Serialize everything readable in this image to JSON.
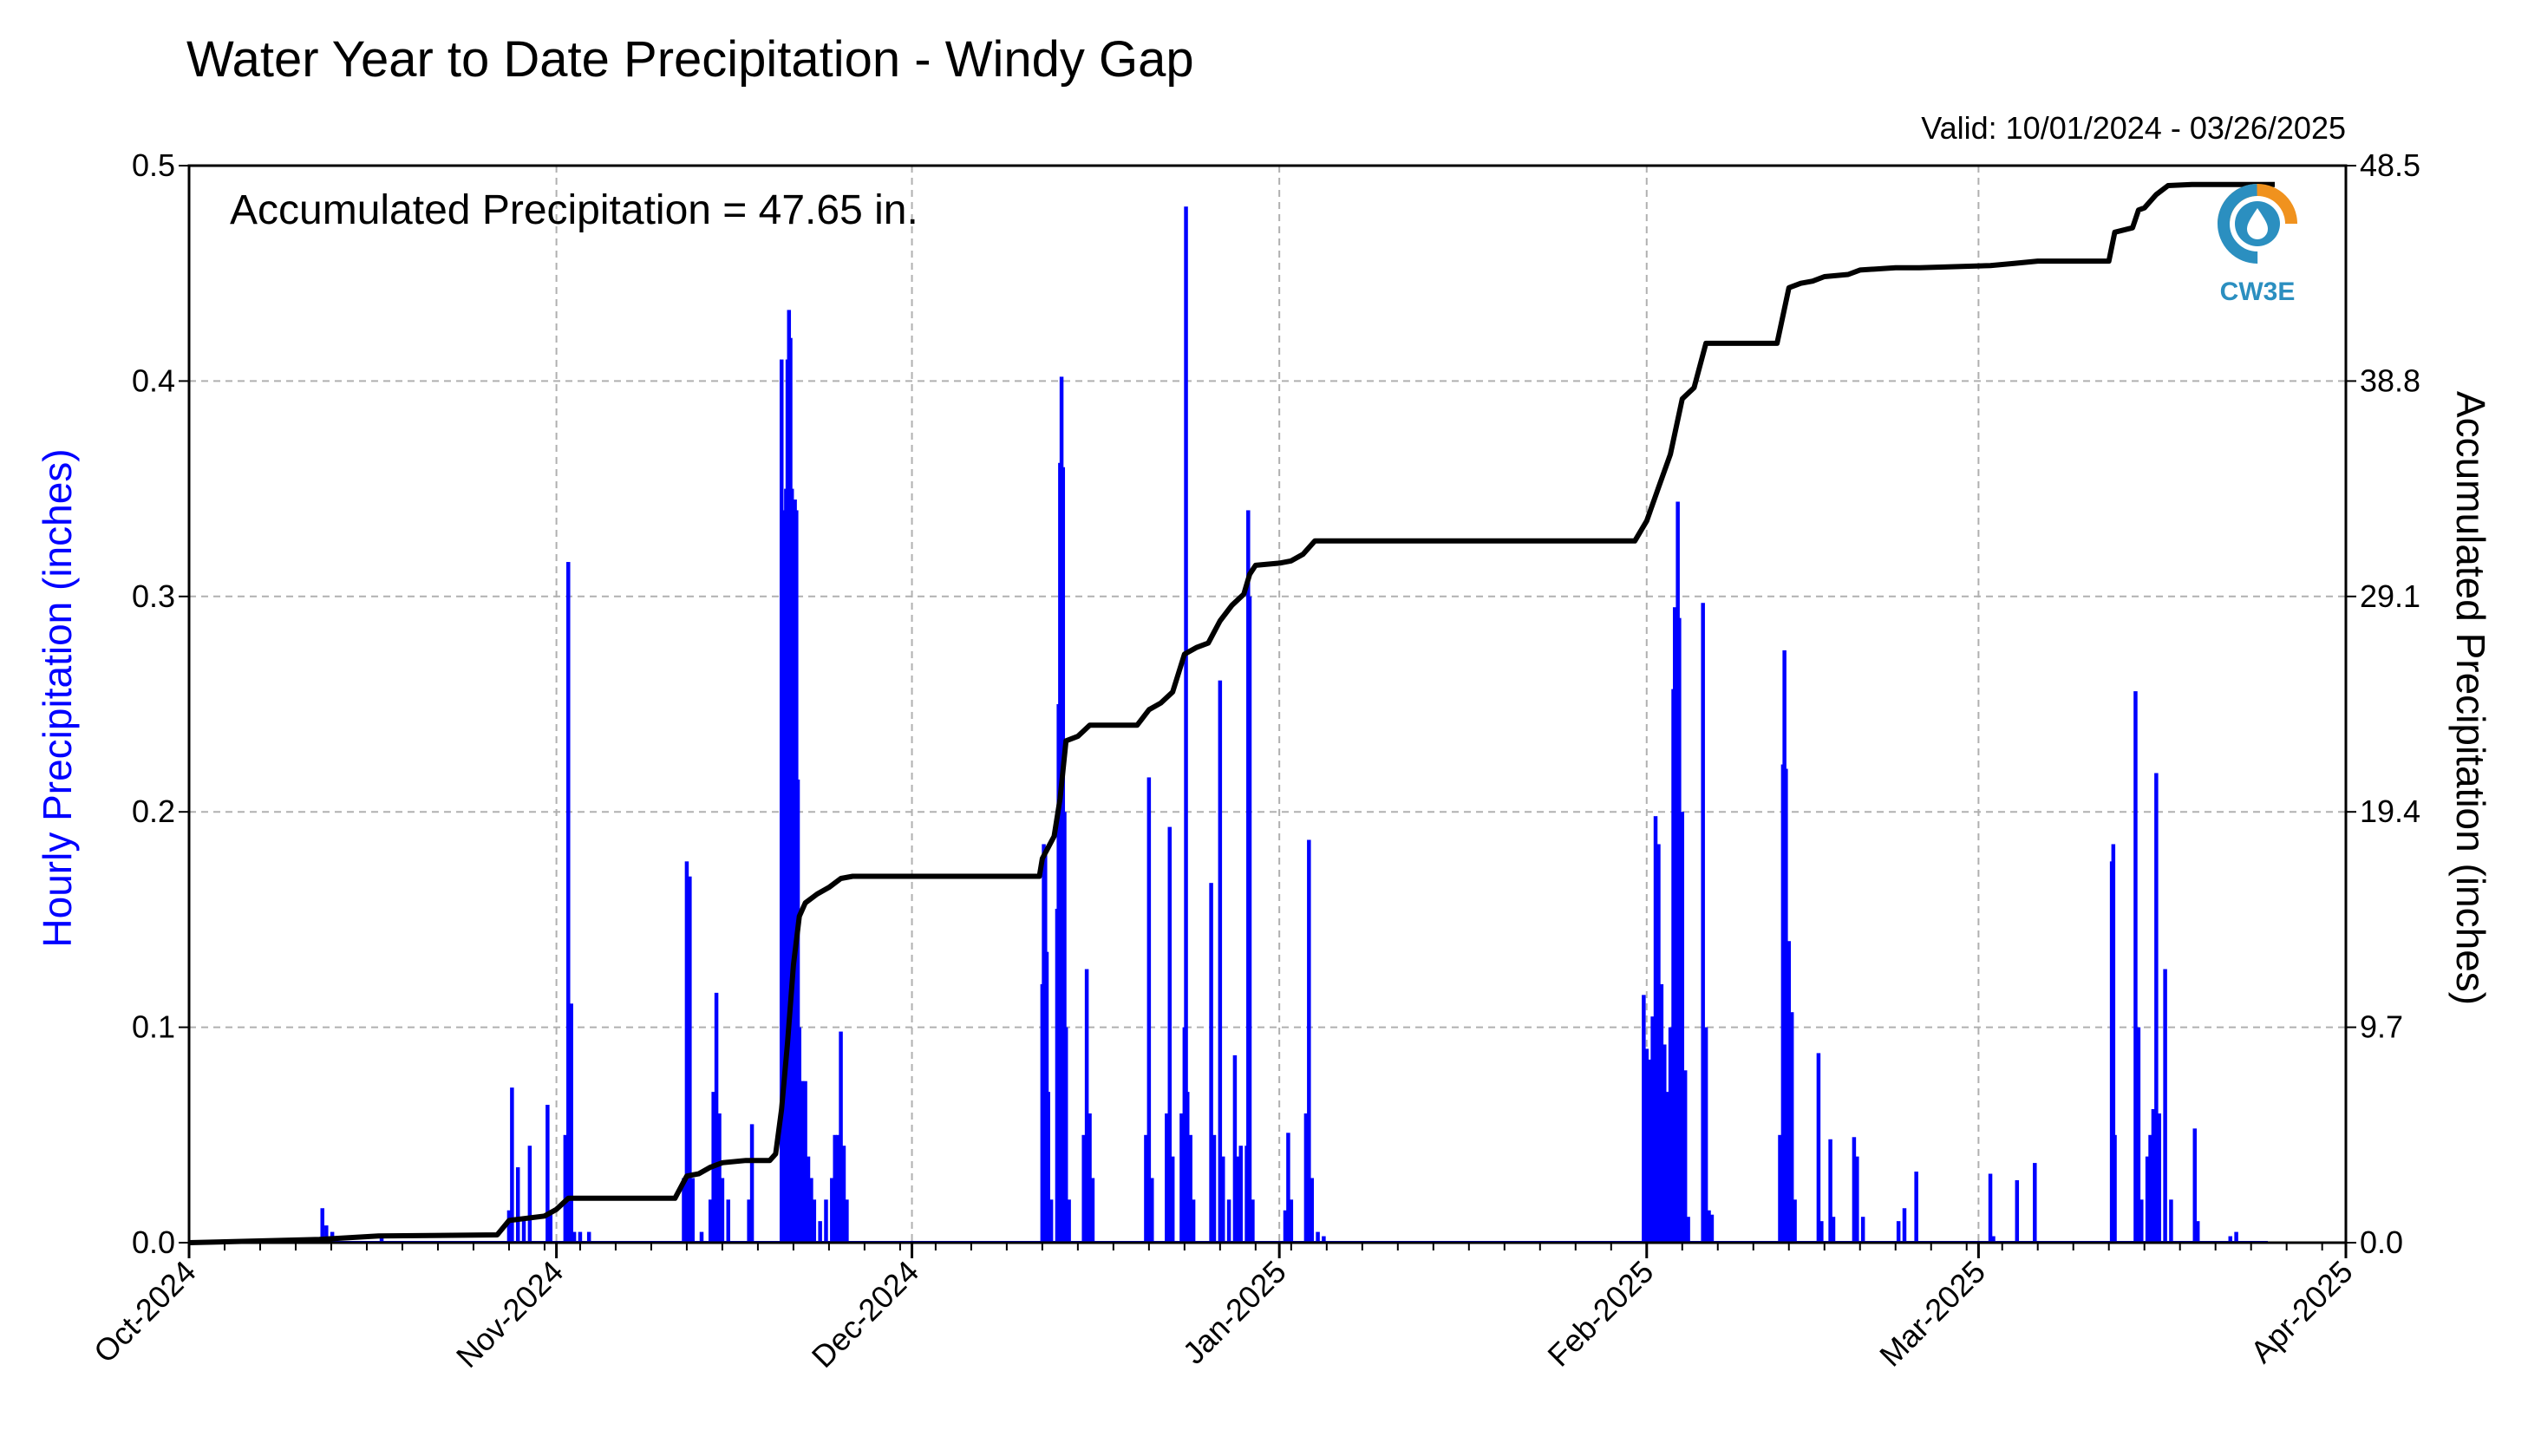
{
  "chart_data": {
    "type": "bar",
    "title": "Water Year to Date Precipitation - Windy Gap",
    "subtitle": "Valid: 10/01/2024 - 03/26/2025",
    "annotation": "Accumulated Precipitation = 47.65 in.",
    "ylabel": "Hourly Precipitation (inches)",
    "ylabel_right": "Accumulated Precipitation (inches)",
    "xlim": [
      "2024-10-01",
      "2025-04-01"
    ],
    "ylim": [
      0,
      0.5
    ],
    "ylim_right": [
      0,
      48.5
    ],
    "grid": true,
    "x_ticks": [
      {
        "date": "2024-10-01",
        "label": "Oct-2024"
      },
      {
        "date": "2024-11-01",
        "label": "Nov-2024"
      },
      {
        "date": "2024-12-01",
        "label": "Dec-2024"
      },
      {
        "date": "2025-01-01",
        "label": "Jan-2025"
      },
      {
        "date": "2025-02-01",
        "label": "Feb-2025"
      },
      {
        "date": "2025-03-01",
        "label": "Mar-2025"
      },
      {
        "date": "2025-04-01",
        "label": "Apr-2025"
      }
    ],
    "y_ticks": [
      "0.0",
      "0.1",
      "0.2",
      "0.3",
      "0.4",
      "0.5"
    ],
    "y_ticks_right": [
      "0.0",
      "9.7",
      "19.4",
      "29.1",
      "38.8",
      "48.5"
    ],
    "colors": {
      "hourly": "#0000ff",
      "accumulated": "#000000",
      "grid": "#b0b0b0"
    },
    "series": [
      {
        "values": [
          [
            "2024-10-12 06:00",
            0.016
          ],
          [
            "2024-10-12 14:00",
            0.008
          ],
          [
            "2024-10-13 02:00",
            0.005
          ],
          [
            "2024-10-17 06:00",
            0.003
          ],
          [
            "2024-10-28 00:00",
            0.015
          ],
          [
            "2024-10-28 06:00",
            0.072
          ],
          [
            "2024-10-28 18:00",
            0.035
          ],
          [
            "2024-10-29 06:00",
            0.012
          ],
          [
            "2024-10-29 18:00",
            0.045
          ],
          [
            "2024-10-31 06:00",
            0.064
          ],
          [
            "2024-10-31 12:00",
            0.015
          ],
          [
            "2024-11-01 18:00",
            0.05
          ],
          [
            "2024-11-02 00:00",
            0.316
          ],
          [
            "2024-11-02 06:00",
            0.111
          ],
          [
            "2024-11-02 12:00",
            0.005
          ],
          [
            "2024-11-03 00:00",
            0.005
          ],
          [
            "2024-11-03 18:00",
            0.005
          ],
          [
            "2024-11-11 18:00",
            0.03
          ],
          [
            "2024-11-12 00:00",
            0.177
          ],
          [
            "2024-11-12 06:00",
            0.17
          ],
          [
            "2024-11-12 12:00",
            0.03
          ],
          [
            "2024-11-13 06:00",
            0.005
          ],
          [
            "2024-11-14 00:00",
            0.02
          ],
          [
            "2024-11-14 06:00",
            0.07
          ],
          [
            "2024-11-14 12:00",
            0.116
          ],
          [
            "2024-11-14 18:00",
            0.06
          ],
          [
            "2024-11-15 00:00",
            0.03
          ],
          [
            "2024-11-15 12:00",
            0.02
          ],
          [
            "2024-11-17 06:00",
            0.02
          ],
          [
            "2024-11-17 12:00",
            0.055
          ],
          [
            "2024-11-20 00:00",
            0.41
          ],
          [
            "2024-11-20 03:00",
            0.34
          ],
          [
            "2024-11-20 06:00",
            0.29
          ],
          [
            "2024-11-20 09:00",
            0.35
          ],
          [
            "2024-11-20 12:00",
            0.41
          ],
          [
            "2024-11-20 15:00",
            0.433
          ],
          [
            "2024-11-20 18:00",
            0.42
          ],
          [
            "2024-11-20 21:00",
            0.35
          ],
          [
            "2024-11-21 00:00",
            0.33
          ],
          [
            "2024-11-21 03:00",
            0.345
          ],
          [
            "2024-11-21 06:00",
            0.34
          ],
          [
            "2024-11-21 09:00",
            0.215
          ],
          [
            "2024-11-21 12:00",
            0.1
          ],
          [
            "2024-11-21 15:00",
            0.075
          ],
          [
            "2024-11-21 18:00",
            0.075
          ],
          [
            "2024-11-22 00:00",
            0.075
          ],
          [
            "2024-11-22 06:00",
            0.04
          ],
          [
            "2024-11-22 12:00",
            0.03
          ],
          [
            "2024-11-22 18:00",
            0.02
          ],
          [
            "2024-11-23 06:00",
            0.01
          ],
          [
            "2024-11-23 18:00",
            0.02
          ],
          [
            "2024-11-24 06:00",
            0.03
          ],
          [
            "2024-11-24 12:00",
            0.05
          ],
          [
            "2024-11-24 18:00",
            0.05
          ],
          [
            "2024-11-25 00:00",
            0.098
          ],
          [
            "2024-11-25 06:00",
            0.045
          ],
          [
            "2024-11-25 12:00",
            0.02
          ],
          [
            "2024-12-12 00:00",
            0.12
          ],
          [
            "2024-12-12 03:00",
            0.185
          ],
          [
            "2024-12-12 06:00",
            0.18
          ],
          [
            "2024-12-12 09:00",
            0.135
          ],
          [
            "2024-12-12 12:00",
            0.07
          ],
          [
            "2024-12-12 18:00",
            0.02
          ],
          [
            "2024-12-13 06:00",
            0.155
          ],
          [
            "2024-12-13 09:00",
            0.25
          ],
          [
            "2024-12-13 12:00",
            0.362
          ],
          [
            "2024-12-13 15:00",
            0.402
          ],
          [
            "2024-12-13 18:00",
            0.36
          ],
          [
            "2024-12-13 21:00",
            0.2
          ],
          [
            "2024-12-14 00:00",
            0.1
          ],
          [
            "2024-12-14 06:00",
            0.02
          ],
          [
            "2024-12-15 12:00",
            0.05
          ],
          [
            "2024-12-15 18:00",
            0.127
          ],
          [
            "2024-12-16 00:00",
            0.06
          ],
          [
            "2024-12-16 06:00",
            0.03
          ],
          [
            "2024-12-20 18:00",
            0.05
          ],
          [
            "2024-12-21 00:00",
            0.216
          ],
          [
            "2024-12-21 06:00",
            0.03
          ],
          [
            "2024-12-22 12:00",
            0.06
          ],
          [
            "2024-12-22 18:00",
            0.193
          ],
          [
            "2024-12-23 00:00",
            0.04
          ],
          [
            "2024-12-23 18:00",
            0.06
          ],
          [
            "2024-12-24 00:00",
            0.1
          ],
          [
            "2024-12-24 03:00",
            0.481
          ],
          [
            "2024-12-24 06:00",
            0.07
          ],
          [
            "2024-12-24 12:00",
            0.05
          ],
          [
            "2024-12-24 18:00",
            0.02
          ],
          [
            "2024-12-26 06:00",
            0.167
          ],
          [
            "2024-12-26 12:00",
            0.05
          ],
          [
            "2024-12-27 00:00",
            0.261
          ],
          [
            "2024-12-27 06:00",
            0.04
          ],
          [
            "2024-12-27 18:00",
            0.02
          ],
          [
            "2024-12-28 06:00",
            0.087
          ],
          [
            "2024-12-28 12:00",
            0.04
          ],
          [
            "2024-12-28 18:00",
            0.045
          ],
          [
            "2024-12-29 06:00",
            0.045
          ],
          [
            "2024-12-29 09:00",
            0.34
          ],
          [
            "2024-12-29 12:00",
            0.3
          ],
          [
            "2024-12-29 18:00",
            0.02
          ],
          [
            "2025-01-01 12:00",
            0.015
          ],
          [
            "2025-01-01 18:00",
            0.051
          ],
          [
            "2025-01-02 00:00",
            0.02
          ],
          [
            "2025-01-03 06:00",
            0.06
          ],
          [
            "2025-01-03 12:00",
            0.187
          ],
          [
            "2025-01-03 18:00",
            0.03
          ],
          [
            "2025-01-04 06:00",
            0.005
          ],
          [
            "2025-01-04 18:00",
            0.003
          ],
          [
            "2025-01-31 18:00",
            0.115
          ],
          [
            "2025-02-01 00:00",
            0.09
          ],
          [
            "2025-02-01 06:00",
            0.085
          ],
          [
            "2025-02-01 12:00",
            0.105
          ],
          [
            "2025-02-01 18:00",
            0.198
          ],
          [
            "2025-02-02 00:00",
            0.185
          ],
          [
            "2025-02-02 06:00",
            0.12
          ],
          [
            "2025-02-02 12:00",
            0.092
          ],
          [
            "2025-02-02 18:00",
            0.07
          ],
          [
            "2025-02-03 00:00",
            0.1
          ],
          [
            "2025-02-03 06:00",
            0.257
          ],
          [
            "2025-02-03 09:00",
            0.295
          ],
          [
            "2025-02-03 12:00",
            0.24
          ],
          [
            "2025-02-03 15:00",
            0.344
          ],
          [
            "2025-02-03 18:00",
            0.29
          ],
          [
            "2025-02-04 00:00",
            0.2
          ],
          [
            "2025-02-04 06:00",
            0.08
          ],
          [
            "2025-02-04 12:00",
            0.012
          ],
          [
            "2025-02-05 18:00",
            0.297
          ],
          [
            "2025-02-06 00:00",
            0.1
          ],
          [
            "2025-02-06 06:00",
            0.015
          ],
          [
            "2025-02-06 12:00",
            0.013
          ],
          [
            "2025-02-12 06:00",
            0.05
          ],
          [
            "2025-02-12 12:00",
            0.222
          ],
          [
            "2025-02-12 15:00",
            0.275
          ],
          [
            "2025-02-12 18:00",
            0.22
          ],
          [
            "2025-02-13 00:00",
            0.14
          ],
          [
            "2025-02-13 06:00",
            0.107
          ],
          [
            "2025-02-13 12:00",
            0.02
          ],
          [
            "2025-02-15 12:00",
            0.088
          ],
          [
            "2025-02-15 18:00",
            0.01
          ],
          [
            "2025-02-16 12:00",
            0.048
          ],
          [
            "2025-02-16 18:00",
            0.012
          ],
          [
            "2025-02-18 12:00",
            0.049
          ],
          [
            "2025-02-18 18:00",
            0.04
          ],
          [
            "2025-02-19 06:00",
            0.012
          ],
          [
            "2025-02-22 06:00",
            0.01
          ],
          [
            "2025-02-22 18:00",
            0.016
          ],
          [
            "2025-02-23 18:00",
            0.033
          ],
          [
            "2025-03-02 00:00",
            0.032
          ],
          [
            "2025-03-02 06:00",
            0.003
          ],
          [
            "2025-03-04 06:00",
            0.029
          ],
          [
            "2025-03-05 18:00",
            0.037
          ],
          [
            "2025-03-12 06:00",
            0.177
          ],
          [
            "2025-03-12 09:00",
            0.185
          ],
          [
            "2025-03-12 12:00",
            0.05
          ],
          [
            "2025-03-14 06:00",
            0.256
          ],
          [
            "2025-03-14 12:00",
            0.1
          ],
          [
            "2025-03-14 18:00",
            0.02
          ],
          [
            "2025-03-15 06:00",
            0.04
          ],
          [
            "2025-03-15 12:00",
            0.05
          ],
          [
            "2025-03-15 18:00",
            0.062
          ],
          [
            "2025-03-16 00:00",
            0.218
          ],
          [
            "2025-03-16 06:00",
            0.06
          ],
          [
            "2025-03-16 18:00",
            0.127
          ],
          [
            "2025-03-17 06:00",
            0.02
          ],
          [
            "2025-03-19 06:00",
            0.053
          ],
          [
            "2025-03-19 12:00",
            0.01
          ],
          [
            "2025-03-22 06:00",
            0.003
          ],
          [
            "2025-03-22 18:00",
            0.005
          ]
        ]
      },
      {
        "values": [
          [
            "2024-10-01",
            0
          ],
          [
            "2024-10-12",
            0.15
          ],
          [
            "2024-10-17",
            0.3
          ],
          [
            "2024-10-27",
            0.35
          ],
          [
            "2024-10-28",
            1.0
          ],
          [
            "2024-10-31",
            1.2
          ],
          [
            "2024-11-01",
            1.5
          ],
          [
            "2024-11-02",
            2.0
          ],
          [
            "2024-11-11",
            2.0
          ],
          [
            "2024-11-12",
            3.0
          ],
          [
            "2024-11-13",
            3.1
          ],
          [
            "2024-11-14",
            3.4
          ],
          [
            "2024-11-15",
            3.6
          ],
          [
            "2024-11-17",
            3.7
          ],
          [
            "2024-11-19",
            3.7
          ],
          [
            "2024-11-19 12:00",
            4.0
          ],
          [
            "2024-11-20",
            6.0
          ],
          [
            "2024-11-20 12:00",
            9.0
          ],
          [
            "2024-11-21",
            12.5
          ],
          [
            "2024-11-21 12:00",
            14.7
          ],
          [
            "2024-11-22",
            15.3
          ],
          [
            "2024-11-23",
            15.7
          ],
          [
            "2024-11-24",
            16.0
          ],
          [
            "2024-11-25",
            16.4
          ],
          [
            "2024-11-26",
            16.5
          ],
          [
            "2024-12-11 18:00",
            16.5
          ],
          [
            "2024-12-12",
            17.3
          ],
          [
            "2024-12-12 12:00",
            17.8
          ],
          [
            "2024-12-13",
            18.3
          ],
          [
            "2024-12-13 12:00",
            20.0
          ],
          [
            "2024-12-14",
            22.6
          ],
          [
            "2024-12-15",
            22.8
          ],
          [
            "2024-12-16",
            23.3
          ],
          [
            "2024-12-20",
            23.3
          ],
          [
            "2024-12-21",
            24.0
          ],
          [
            "2024-12-22",
            24.3
          ],
          [
            "2024-12-23",
            24.8
          ],
          [
            "2024-12-24",
            26.5
          ],
          [
            "2024-12-25",
            26.8
          ],
          [
            "2024-12-26",
            27.0
          ],
          [
            "2024-12-27",
            28.0
          ],
          [
            "2024-12-28",
            28.7
          ],
          [
            "2024-12-29",
            29.2
          ],
          [
            "2024-12-29 12:00",
            30.1
          ],
          [
            "2024-12-30",
            30.5
          ],
          [
            "2025-01-01",
            30.6
          ],
          [
            "2025-01-02",
            30.7
          ],
          [
            "2025-01-03",
            31.0
          ],
          [
            "2025-01-04",
            31.6
          ],
          [
            "2025-01-31",
            31.6
          ],
          [
            "2025-02-01",
            32.5
          ],
          [
            "2025-02-02",
            34.0
          ],
          [
            "2025-02-03",
            35.5
          ],
          [
            "2025-02-04",
            38.0
          ],
          [
            "2025-02-05",
            38.5
          ],
          [
            "2025-02-06",
            40.5
          ],
          [
            "2025-02-12",
            40.5
          ],
          [
            "2025-02-13",
            43.0
          ],
          [
            "2025-02-14",
            43.2
          ],
          [
            "2025-02-15",
            43.3
          ],
          [
            "2025-02-16",
            43.5
          ],
          [
            "2025-02-18",
            43.6
          ],
          [
            "2025-02-19",
            43.8
          ],
          [
            "2025-02-22",
            43.9
          ],
          [
            "2025-02-24",
            43.9
          ],
          [
            "2025-03-02",
            44.0
          ],
          [
            "2025-03-04",
            44.1
          ],
          [
            "2025-03-06",
            44.2
          ],
          [
            "2025-03-12",
            44.2
          ],
          [
            "2025-03-12 12:00",
            45.5
          ],
          [
            "2025-03-14",
            45.7
          ],
          [
            "2025-03-14 12:00",
            46.5
          ],
          [
            "2025-03-15",
            46.6
          ],
          [
            "2025-03-16",
            47.2
          ],
          [
            "2025-03-17",
            47.6
          ],
          [
            "2025-03-19",
            47.65
          ],
          [
            "2025-03-26",
            47.65
          ]
        ]
      }
    ]
  },
  "logo": {
    "text": "CW3E",
    "colors": {
      "orange": "#f0921e",
      "blue": "#2b8fc0"
    }
  }
}
